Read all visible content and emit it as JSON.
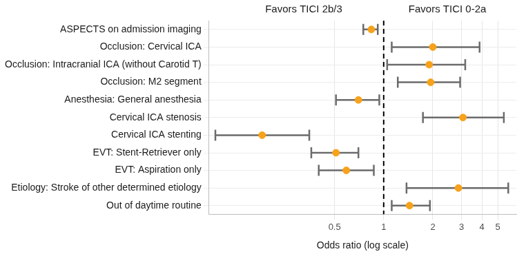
{
  "chart_data": {
    "type": "forest",
    "categories": [
      "ASPECTS on admission imaging",
      "Occlusion: Cervical ICA",
      "Occlusion: Intracranial ICA (without Carotid T)",
      "Occlusion: M2 segment",
      "Anesthesia: General anesthesia",
      "Cervical ICA stenosis",
      "Cervical ICA stenting",
      "EVT: Stent-Retriever only",
      "EVT: Aspiration only",
      "Etiology: Stroke of other determined etiology",
      "Out of daytime routine"
    ],
    "values": [
      0.84,
      2.0,
      1.9,
      1.94,
      0.7,
      3.06,
      0.18,
      0.51,
      0.59,
      2.87,
      1.44
    ],
    "ci_low": [
      0.75,
      1.12,
      1.05,
      1.22,
      0.51,
      1.74,
      0.093,
      0.36,
      0.4,
      1.38,
      1.12
    ],
    "ci_high": [
      0.92,
      3.87,
      3.16,
      2.94,
      0.94,
      5.45,
      0.35,
      0.7,
      0.87,
      5.8,
      1.92
    ],
    "color": "#f7a21b",
    "reference_line": 1,
    "annotations": [
      "Favors TICI 2b/3",
      "Favors TICI 0-2a"
    ],
    "x_label": "Odds ratio (log scale)",
    "log": "x",
    "xlim": [
      0.085,
      6.5
    ],
    "xticks": [
      0.5,
      1,
      2,
      3,
      4,
      5
    ],
    "grid": true
  }
}
